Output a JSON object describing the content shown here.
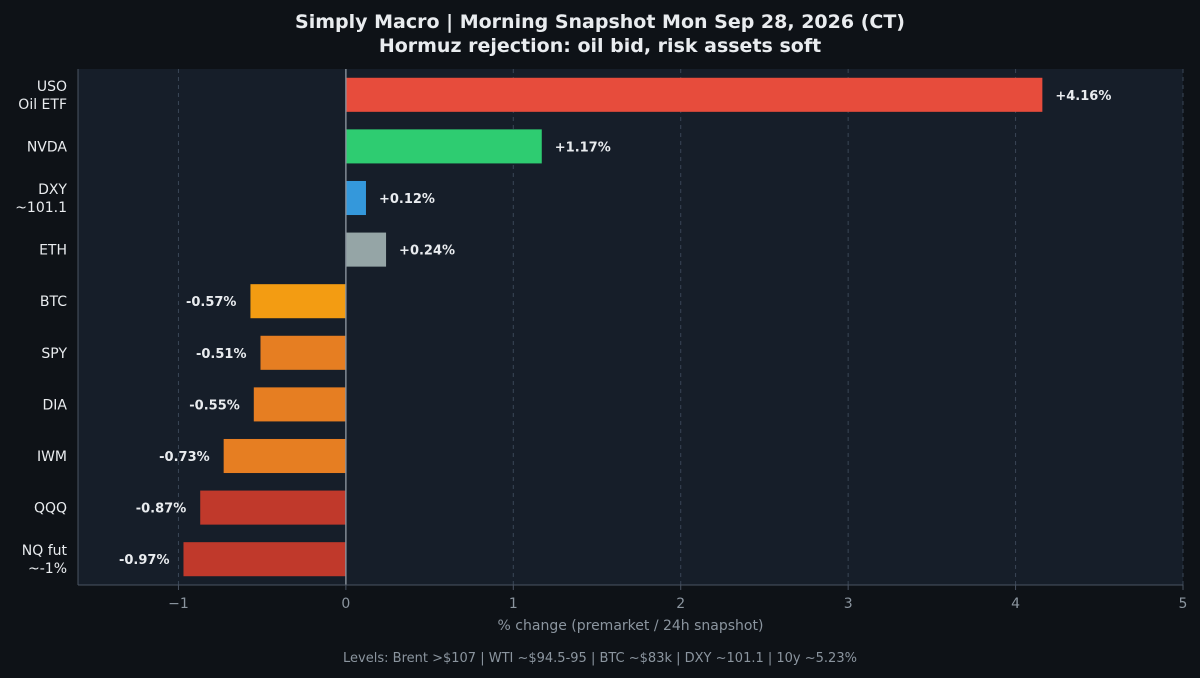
{
  "chart_data": {
    "type": "bar",
    "orientation": "horizontal",
    "title": "Simply Macro | Morning Snapshot  Mon Sep 28, 2026 (CT)",
    "subtitle": "Hormuz rejection: oil bid, risk assets soft",
    "xlabel": "% change (premarket / 24h snapshot)",
    "ylabel": "",
    "xlim": [
      -1.6,
      5
    ],
    "xticks": [
      -1,
      0,
      1,
      2,
      3,
      4,
      5
    ],
    "xtick_labels": [
      "−1",
      "0",
      "1",
      "2",
      "3",
      "4",
      "5"
    ],
    "grid": "vertical dashed",
    "categories": [
      [
        "USO",
        "Oil ETF"
      ],
      [
        "NVDA"
      ],
      [
        "DXY",
        "~101.1"
      ],
      [
        "ETH"
      ],
      [
        "BTC"
      ],
      [
        "SPY"
      ],
      [
        "DIA"
      ],
      [
        "IWM"
      ],
      [
        "QQQ"
      ],
      [
        "NQ fut",
        "~-1%"
      ]
    ],
    "values": [
      4.16,
      1.17,
      0.12,
      0.24,
      -0.57,
      -0.51,
      -0.55,
      -0.73,
      -0.87,
      -0.97
    ],
    "data_labels": [
      "+4.16%",
      "+1.17%",
      "+0.12%",
      "+0.24%",
      "-0.57%",
      "-0.51%",
      "-0.55%",
      "-0.73%",
      "-0.87%",
      "-0.97%"
    ],
    "colors": [
      "#e74c3c",
      "#2ecc71",
      "#3498db",
      "#95a5a6",
      "#f39c12",
      "#e67e22",
      "#e67e22",
      "#e67e22",
      "#c0392b",
      "#c0392b"
    ],
    "footer": "Levels: Brent >$107 | WTI ~$94.5-95 | BTC ~$83k | DXY ~101.1 | 10y ~5.23%"
  },
  "theme": {
    "page_bg": "#0e1217",
    "plot_bg": "#161e29",
    "axis_color": "#4a5462",
    "grid_color": "#3a4656",
    "zero_line": "#8a929c",
    "text_color": "#e9ecef",
    "muted_text": "#8b959f"
  }
}
